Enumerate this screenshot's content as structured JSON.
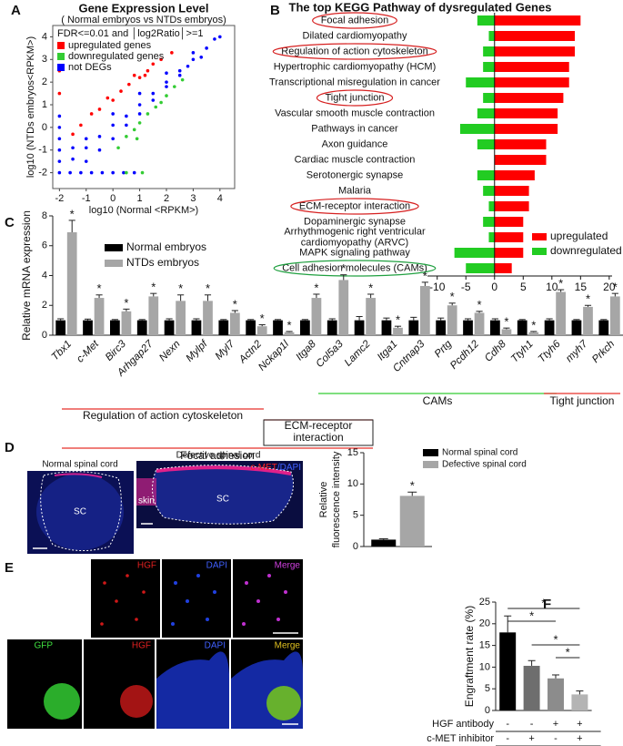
{
  "chart_data": [
    {
      "panel": "A",
      "type": "scatter",
      "title": "Gene Expression Level",
      "subtitle": "( Normal embryos  vs NTDs embryos)",
      "legend_title": "FDR<=0.01 and │log2Ratio│>=1",
      "legend": "upper left",
      "xlabel": "log10 (Normal <RPKM>)",
      "ylabel": "log10 (NTDs embryos<RPKM>)",
      "xlim": [
        -2.25,
        4.55
      ],
      "ylim": [
        -2.7,
        4.5
      ],
      "xticks": [
        -2,
        -1,
        0,
        1,
        2,
        3,
        4
      ],
      "yticks": [
        -2,
        -1,
        0,
        1,
        2,
        3,
        4
      ],
      "series": [
        {
          "name": "upregulated genes",
          "color": "#ff0000",
          "x": [
            -1.5,
            -1.2,
            -0.8,
            -0.5,
            -0.2,
            0,
            0.3,
            0.6,
            0.8,
            1,
            1.2,
            1.3,
            1.5,
            1.8,
            2.2,
            -2,
            -2
          ],
          "values": [
            -0.3,
            0.1,
            0.6,
            0.8,
            1.3,
            1.2,
            1.6,
            1.9,
            2.3,
            2.2,
            2.3,
            2.5,
            2.8,
            3.0,
            3.3,
            1.5,
            2.5
          ]
        },
        {
          "name": "downregulated genes",
          "color": "#33cc33",
          "x": [
            0.2,
            0.5,
            0.8,
            0.9,
            1.0,
            1.3,
            1.6,
            1.8,
            2.0,
            2.3,
            2.6,
            0.5,
            1.1
          ],
          "values": [
            -0.9,
            -0.4,
            -0.1,
            -0.5,
            0.2,
            0.6,
            0.9,
            1.1,
            1.4,
            1.8,
            2.1,
            -2,
            -2
          ]
        },
        {
          "name": "not DEGs",
          "color": "#0000ff",
          "x": [
            -2,
            -1.6,
            -1.2,
            -0.8,
            -0.4,
            0,
            0.4,
            0.8,
            -2,
            -2,
            -2,
            -2,
            -2,
            -1.5,
            -1,
            -0.5,
            0,
            0.5,
            1,
            1.5,
            2,
            2.5,
            3,
            3.5,
            4,
            -1,
            -0.5,
            0,
            0.5,
            1,
            1.5,
            2,
            2.5,
            -1,
            0,
            1,
            2,
            3,
            -1.5,
            3.8,
            2.8,
            3.3
          ],
          "values": [
            -2,
            -2,
            -2,
            -2,
            -2,
            -2,
            -2,
            -2,
            -1.5,
            -1,
            -0.5,
            0,
            0.5,
            -1.4,
            -0.9,
            -0.4,
            0.1,
            0.5,
            1,
            1.5,
            2,
            2.5,
            3,
            3.5,
            4,
            -1.5,
            -1,
            -0.5,
            0.1,
            0.6,
            1.2,
            1.8,
            2.3,
            -0.5,
            0.6,
            1.5,
            2.4,
            3.3,
            -0.9,
            3.9,
            2.7,
            3.1
          ]
        }
      ]
    },
    {
      "panel": "B",
      "type": "bar",
      "orientation": "horizontal",
      "title": "The top KEGG Pathway of dysregulated Genes",
      "legend": "lower right",
      "categories": [
        "Focal adhesion",
        "Dilated cardiomyopathy",
        "Regulation of action cytoskeleton",
        "Hypertrophic cardiomyopathy (HCM)",
        "Transcriptional misregulation in cancer",
        "Tight junction",
        "Vascular smooth muscle contraction",
        "Pathways in cancer",
        "Axon guidance",
        "Cardiac muscle contraction",
        "Serotonergic synapse",
        "Malaria",
        "ECM-receptor interaction",
        "Dopaminergic synapse",
        [
          "Arrhythmogenic right ventricular",
          "cardiomyopathy (ARVC)"
        ],
        "MAPK signaling pathway",
        "Cell adhesion molecules (CAMs)"
      ],
      "xlim": [
        -11.7,
        20.5
      ],
      "xticks": [
        -10,
        -5,
        0,
        5,
        10,
        15,
        20
      ],
      "series": [
        {
          "name": "upregulated",
          "color": "#ff0000",
          "values": [
            15,
            14,
            14,
            13,
            13,
            12,
            11,
            11,
            9,
            9,
            7,
            6,
            6,
            5,
            5,
            5,
            3
          ]
        },
        {
          "name": "downregulated",
          "color": "#22cc22",
          "values": [
            -3,
            -1,
            -2,
            -2,
            -5,
            -2,
            -3,
            -6,
            -3,
            0,
            -3,
            -2,
            -1,
            -2,
            -1,
            -7,
            -5
          ]
        }
      ]
    },
    {
      "panel": "C",
      "type": "bar",
      "ylabel": "Relative mRNA expression",
      "legend": "upper left",
      "categories": [
        "Tbx1",
        "c-Met",
        "Birc3",
        "Arhgap27",
        "Nexn",
        "Mylpf",
        "Myl7",
        "Actn2",
        "Nckap1l",
        "Itga8",
        "Col5a3",
        "Lamc2",
        "Itga1",
        "Cntnap3",
        "Prtg",
        "Pcdh12",
        "Cdh8",
        "Ttyh1",
        "Ttyh6",
        "myh7",
        "Prkch"
      ],
      "ylim": [
        0,
        8
      ],
      "yticks": [
        0,
        2,
        4,
        6,
        8
      ],
      "series": [
        {
          "name": "Normal embryos",
          "color": "#000000",
          "values": [
            1,
            1,
            1,
            1,
            1,
            1,
            1,
            1,
            1,
            1,
            1,
            1,
            1,
            1,
            1,
            1,
            1,
            1,
            1,
            1,
            1
          ],
          "errors": [
            0.1,
            0.08,
            0.05,
            0.05,
            0.1,
            0.1,
            0.05,
            0.05,
            0.05,
            0.05,
            0.1,
            0.25,
            0.15,
            0.2,
            0.15,
            0.1,
            0.1,
            0.05,
            0.1,
            0.05,
            0.05
          ]
        },
        {
          "name": "NTDs embryos",
          "color": "#a6a6a6",
          "values": [
            6.9,
            2.5,
            1.6,
            2.6,
            2.3,
            2.3,
            1.5,
            0.6,
            0.2,
            2.5,
            3.7,
            2.5,
            0.5,
            3.3,
            2.0,
            1.5,
            0.4,
            0.2,
            2.9,
            1.9,
            2.6
          ],
          "errors": [
            0.8,
            0.2,
            0.15,
            0.2,
            0.4,
            0.4,
            0.15,
            0.1,
            0.05,
            0.25,
            0.35,
            0.25,
            0.1,
            0.25,
            0.15,
            0.1,
            0.08,
            0.05,
            0.15,
            0.1,
            0.2
          ]
        }
      ],
      "significance": [
        "*",
        "*",
        "*",
        "*",
        "*",
        "*",
        "*",
        "*",
        "*",
        "*",
        "*",
        "*",
        "*",
        "*",
        "*",
        "*",
        "*",
        "*",
        "*",
        "*",
        "*"
      ],
      "groups": [
        {
          "label": "Regulation of action cytoskeleton",
          "color": "#e8302a"
        },
        {
          "label": [
            "ECM-receptor",
            "interaction"
          ],
          "color": "#e8302a"
        },
        {
          "label": "Focal adhesion",
          "color": "#e8302a"
        },
        {
          "label": "CAMs",
          "color": "#33cc33"
        },
        {
          "label": "Tight junction",
          "color": "#e8302a"
        }
      ]
    },
    {
      "panel": "D",
      "type": "bar",
      "ylabel": [
        "Relative",
        "fluorescence intensity"
      ],
      "legend": "right",
      "ylim": [
        0,
        15
      ],
      "yticks": [
        0,
        5,
        10,
        15
      ],
      "series": [
        {
          "name": "Normal spinal cord",
          "color": "#000000",
          "values": [
            1.1
          ],
          "errors": [
            0.15
          ]
        },
        {
          "name": "Defective spinal cord",
          "color": "#a6a6a6",
          "values": [
            8.1
          ],
          "errors": [
            0.6
          ]
        }
      ],
      "significance": [
        "*"
      ]
    },
    {
      "panel": "F",
      "type": "bar",
      "ylabel": "Engraftment rate (%)",
      "ylim": [
        0,
        25
      ],
      "yticks": [
        0,
        5,
        10,
        15,
        20,
        25
      ],
      "values": [
        18,
        10.3,
        7.4,
        3.7
      ],
      "errors": [
        3.8,
        1.2,
        0.8,
        0.8
      ],
      "colors": [
        "#000000",
        "#6e6e6e",
        "#8c8c8c",
        "#b4b4b4"
      ],
      "conditions": [
        {
          "label": "HGF antibody",
          "levels": [
            "-",
            "-",
            "+",
            "+"
          ]
        },
        {
          "label": "c-MET inhibitor",
          "levels": [
            "-",
            "+",
            "-",
            "+"
          ]
        }
      ],
      "comparisons": [
        "*",
        "*",
        "*",
        "*"
      ]
    }
  ],
  "images": {
    "normal_title": "Normal spinal cord",
    "defective_title": "Defective spinal cord",
    "region": "SC",
    "skin": "skin",
    "stain": [
      "c-MET",
      "/DAPI"
    ],
    "panel": "E",
    "top_labels": [
      "HGF",
      "DAPI",
      "Merge"
    ],
    "bottom_labels": [
      "GFP",
      "HGF",
      "DAPI",
      "Merge"
    ]
  }
}
